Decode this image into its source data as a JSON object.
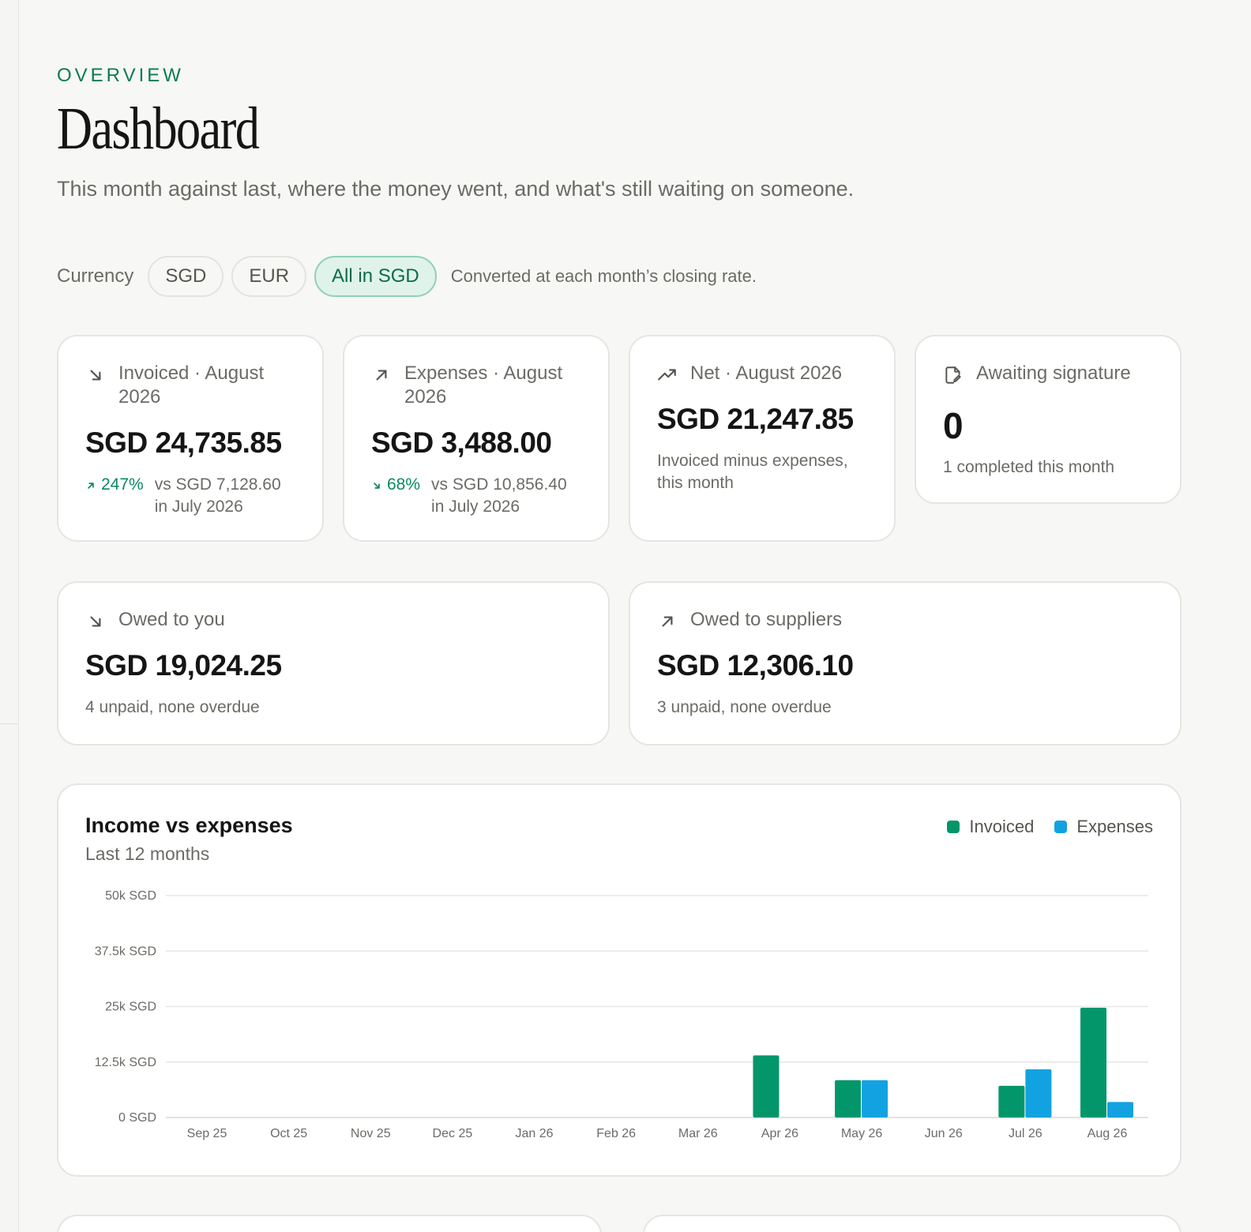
{
  "header": {
    "eyebrow": "OVERVIEW",
    "title": "Dashboard",
    "subtitle": "This month against last, where the money went, and what's still waiting on someone."
  },
  "currency": {
    "label": "Currency",
    "options": [
      "SGD",
      "EUR",
      "All in SGD"
    ],
    "selected": "All in SGD",
    "note": "Converted at each month’s closing rate."
  },
  "cards": {
    "invoiced": {
      "icon": "arrow-down-right-icon",
      "label_line1": "Invoiced · August",
      "label_line2": "2026",
      "value": "SGD 24,735.85",
      "delta_pct": "247%",
      "delta_dir": "up",
      "delta_text_line1": "vs SGD 7,128.60",
      "delta_text_line2": "in July 2026"
    },
    "expenses": {
      "icon": "arrow-up-right-icon",
      "label_line1": "Expenses · August",
      "label_line2": "2026",
      "value": "SGD 3,488.00",
      "delta_pct": "68%",
      "delta_dir": "down",
      "delta_text_line1": "vs SGD 10,856.40",
      "delta_text_line2": "in July 2026"
    },
    "net": {
      "icon": "trending-up-icon",
      "label": "Net · August 2026",
      "value": "SGD 21,247.85",
      "sub_line1": "Invoiced minus expenses,",
      "sub_line2": "this month"
    },
    "awaiting": {
      "icon": "signature-document-icon",
      "label": "Awaiting signature",
      "value": "0",
      "sub": "1 completed this month"
    },
    "owed_to_you": {
      "icon": "arrow-down-right-icon",
      "label": "Owed to you",
      "value": "SGD 19,024.25",
      "sub": "4 unpaid, none overdue"
    },
    "owed_to_suppliers": {
      "icon": "arrow-up-right-icon",
      "label": "Owed to suppliers",
      "value": "SGD 12,306.10",
      "sub": "3 unpaid, none overdue"
    }
  },
  "colors": {
    "accent": "#0a7a55",
    "invoiced": "#04966b",
    "expenses": "#13a2e1",
    "delta_positive": "#0a8a60"
  },
  "chart_data": {
    "type": "bar",
    "title": "Income vs expenses",
    "subtitle": "Last 12 months",
    "categories": [
      "Sep 25",
      "Oct 25",
      "Nov 25",
      "Dec 25",
      "Jan 26",
      "Feb 26",
      "Mar 26",
      "Apr 26",
      "May 26",
      "Jun 26",
      "Jul 26",
      "Aug 26"
    ],
    "series": [
      {
        "name": "Invoiced",
        "color": "#04966b",
        "values": [
          0,
          0,
          0,
          0,
          0,
          0,
          0,
          14000,
          8400,
          0,
          7128.6,
          24735.85
        ]
      },
      {
        "name": "Expenses",
        "color": "#13a2e1",
        "values": [
          0,
          0,
          0,
          0,
          0,
          0,
          0,
          0,
          8400,
          0,
          10856.4,
          3488
        ]
      }
    ],
    "yticks": [
      "0 SGD",
      "12.5k SGD",
      "25k SGD",
      "37.5k SGD",
      "50k SGD"
    ],
    "ylim": [
      0,
      50000
    ],
    "grid": true,
    "legend": "top-right"
  }
}
